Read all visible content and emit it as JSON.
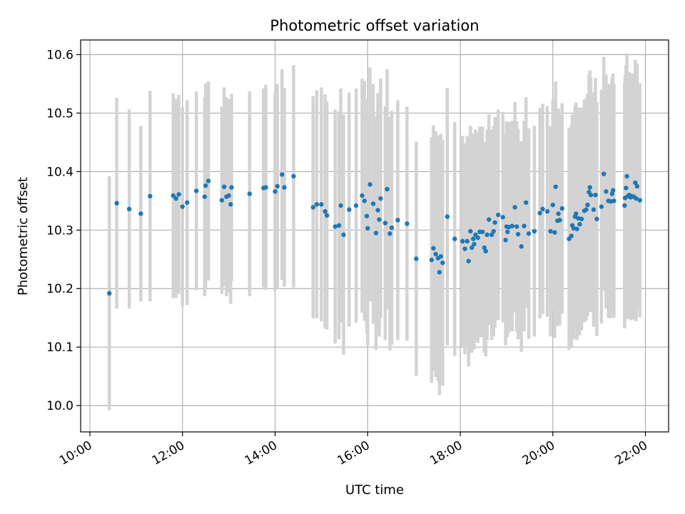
{
  "chart_data": {
    "type": "scatter",
    "title": "Photometric offset variation",
    "xlabel": "UTC time",
    "ylabel": "Photometric offset",
    "x_unit": "hours (UTC)",
    "xlim": [
      9.8,
      22.5
    ],
    "ylim": [
      9.955,
      10.625
    ],
    "xticks": [
      10,
      12,
      14,
      16,
      18,
      20,
      22
    ],
    "xtick_labels": [
      "10:00",
      "12:00",
      "14:00",
      "16:00",
      "18:00",
      "20:00",
      "22:00"
    ],
    "yticks": [
      10.0,
      10.1,
      10.2,
      10.3,
      10.4,
      10.5,
      10.6
    ],
    "ytick_labels": [
      "10.0",
      "10.1",
      "10.2",
      "10.3",
      "10.4",
      "10.5",
      "10.6"
    ],
    "grid": true,
    "marker_color": "#1f77b4",
    "errorbar_color": "#d3d3d3",
    "points": [
      [
        10.42,
        10.192,
        0.2
      ],
      [
        10.58,
        10.346,
        0.18
      ],
      [
        10.85,
        10.336,
        0.17
      ],
      [
        11.1,
        10.328,
        0.15
      ],
      [
        11.3,
        10.358,
        0.18
      ],
      [
        11.8,
        10.359,
        0.175
      ],
      [
        11.86,
        10.354,
        0.17
      ],
      [
        11.92,
        10.361,
        0.17
      ],
      [
        12.0,
        10.34,
        0.17
      ],
      [
        12.1,
        10.347,
        0.175
      ],
      [
        12.3,
        10.367,
        0.17
      ],
      [
        12.48,
        10.357,
        0.17
      ],
      [
        12.5,
        10.376,
        0.175
      ],
      [
        12.56,
        10.384,
        0.17
      ],
      [
        12.85,
        10.351,
        0.16
      ],
      [
        12.9,
        10.374,
        0.17
      ],
      [
        12.95,
        10.357,
        0.17
      ],
      [
        13.0,
        10.359,
        0.165
      ],
      [
        13.04,
        10.344,
        0.17
      ],
      [
        13.06,
        10.373,
        0.16
      ],
      [
        13.45,
        10.362,
        0.175
      ],
      [
        13.75,
        10.372,
        0.17
      ],
      [
        13.8,
        10.373,
        0.175
      ],
      [
        14.0,
        10.366,
        0.17
      ],
      [
        14.05,
        10.375,
        0.175
      ],
      [
        14.15,
        10.395,
        0.18
      ],
      [
        14.2,
        10.373,
        0.17
      ],
      [
        14.4,
        10.392,
        0.19
      ],
      [
        14.82,
        10.339,
        0.19
      ],
      [
        14.9,
        10.344,
        0.195
      ],
      [
        15.0,
        10.344,
        0.2
      ],
      [
        15.08,
        10.332,
        0.2
      ],
      [
        15.12,
        10.325,
        0.195
      ],
      [
        15.3,
        10.306,
        0.2
      ],
      [
        15.38,
        10.308,
        0.195
      ],
      [
        15.42,
        10.342,
        0.2
      ],
      [
        15.48,
        10.292,
        0.205
      ],
      [
        15.6,
        10.335,
        0.2
      ],
      [
        15.75,
        10.342,
        0.2
      ],
      [
        15.88,
        10.359,
        0.2
      ],
      [
        15.93,
        10.35,
        0.205
      ],
      [
        15.98,
        10.324,
        0.2
      ],
      [
        16.0,
        10.303,
        0.2
      ],
      [
        16.05,
        10.378,
        0.2
      ],
      [
        16.12,
        10.345,
        0.205
      ],
      [
        16.18,
        10.295,
        0.2
      ],
      [
        16.22,
        10.334,
        0.2
      ],
      [
        16.25,
        10.318,
        0.2
      ],
      [
        16.28,
        10.354,
        0.205
      ],
      [
        16.38,
        10.312,
        0.2
      ],
      [
        16.42,
        10.37,
        0.205
      ],
      [
        16.48,
        10.294,
        0.2
      ],
      [
        16.52,
        10.304,
        0.2
      ],
      [
        16.65,
        10.317,
        0.205
      ],
      [
        16.85,
        10.311,
        0.2
      ],
      [
        17.05,
        10.251,
        0.2
      ],
      [
        17.38,
        10.249,
        0.21
      ],
      [
        17.42,
        10.269,
        0.21
      ],
      [
        17.47,
        10.259,
        0.21
      ],
      [
        17.52,
        10.252,
        0.21
      ],
      [
        17.55,
        10.228,
        0.21
      ],
      [
        17.58,
        10.255,
        0.21
      ],
      [
        17.62,
        10.244,
        0.21
      ],
      [
        17.72,
        10.323,
        0.22
      ],
      [
        17.88,
        10.285,
        0.2
      ],
      [
        18.05,
        10.281,
        0.18
      ],
      [
        18.1,
        10.268,
        0.18
      ],
      [
        18.15,
        10.281,
        0.18
      ],
      [
        18.18,
        10.247,
        0.18
      ],
      [
        18.22,
        10.298,
        0.18
      ],
      [
        18.25,
        10.27,
        0.18
      ],
      [
        18.28,
        10.285,
        0.18
      ],
      [
        18.3,
        10.276,
        0.18
      ],
      [
        18.33,
        10.292,
        0.18
      ],
      [
        18.38,
        10.287,
        0.18
      ],
      [
        18.42,
        10.297,
        0.18
      ],
      [
        18.48,
        10.297,
        0.18
      ],
      [
        18.52,
        10.27,
        0.18
      ],
      [
        18.55,
        10.264,
        0.18
      ],
      [
        18.58,
        10.292,
        0.18
      ],
      [
        18.62,
        10.318,
        0.18
      ],
      [
        18.68,
        10.292,
        0.18
      ],
      [
        18.72,
        10.298,
        0.18
      ],
      [
        18.75,
        10.313,
        0.18
      ],
      [
        18.82,
        10.326,
        0.18
      ],
      [
        18.92,
        10.322,
        0.18
      ],
      [
        18.98,
        10.283,
        0.18
      ],
      [
        19.0,
        10.306,
        0.18
      ],
      [
        19.02,
        10.297,
        0.18
      ],
      [
        19.05,
        10.305,
        0.18
      ],
      [
        19.12,
        10.307,
        0.18
      ],
      [
        19.18,
        10.339,
        0.18
      ],
      [
        19.22,
        10.306,
        0.18
      ],
      [
        19.25,
        10.293,
        0.18
      ],
      [
        19.32,
        10.272,
        0.18
      ],
      [
        19.38,
        10.307,
        0.18
      ],
      [
        19.42,
        10.347,
        0.18
      ],
      [
        19.48,
        10.294,
        0.18
      ],
      [
        19.6,
        10.298,
        0.18
      ],
      [
        19.72,
        10.329,
        0.18
      ],
      [
        19.78,
        10.336,
        0.18
      ],
      [
        19.88,
        10.332,
        0.18
      ],
      [
        19.95,
        10.298,
        0.18
      ],
      [
        20.0,
        10.343,
        0.18
      ],
      [
        20.04,
        10.296,
        0.18
      ],
      [
        20.06,
        10.374,
        0.18
      ],
      [
        20.1,
        10.316,
        0.18
      ],
      [
        20.12,
        10.328,
        0.18
      ],
      [
        20.15,
        10.317,
        0.18
      ],
      [
        20.2,
        10.337,
        0.18
      ],
      [
        20.35,
        10.285,
        0.19
      ],
      [
        20.4,
        10.29,
        0.19
      ],
      [
        20.42,
        10.308,
        0.19
      ],
      [
        20.45,
        10.303,
        0.19
      ],
      [
        20.48,
        10.323,
        0.19
      ],
      [
        20.5,
        10.328,
        0.19
      ],
      [
        20.52,
        10.302,
        0.19
      ],
      [
        20.55,
        10.32,
        0.19
      ],
      [
        20.58,
        10.31,
        0.19
      ],
      [
        20.62,
        10.319,
        0.19
      ],
      [
        20.68,
        10.333,
        0.19
      ],
      [
        20.72,
        10.335,
        0.19
      ],
      [
        20.75,
        10.343,
        0.19
      ],
      [
        20.78,
        10.365,
        0.2
      ],
      [
        20.8,
        10.373,
        0.2
      ],
      [
        20.82,
        10.36,
        0.2
      ],
      [
        20.88,
        10.335,
        0.2
      ],
      [
        20.92,
        10.36,
        0.2
      ],
      [
        20.95,
        10.319,
        0.2
      ],
      [
        21.05,
        10.34,
        0.2
      ],
      [
        21.1,
        10.396,
        0.2
      ],
      [
        21.15,
        10.366,
        0.2
      ],
      [
        21.2,
        10.35,
        0.2
      ],
      [
        21.25,
        10.349,
        0.2
      ],
      [
        21.28,
        10.362,
        0.2
      ],
      [
        21.3,
        10.368,
        0.2
      ],
      [
        21.32,
        10.35,
        0.2
      ],
      [
        21.55,
        10.342,
        0.21
      ],
      [
        21.56,
        10.355,
        0.21
      ],
      [
        21.58,
        10.372,
        0.21
      ],
      [
        21.6,
        10.392,
        0.21
      ],
      [
        21.62,
        10.358,
        0.21
      ],
      [
        21.65,
        10.36,
        0.21
      ],
      [
        21.68,
        10.356,
        0.21
      ],
      [
        21.7,
        10.358,
        0.21
      ],
      [
        21.75,
        10.357,
        0.21
      ],
      [
        21.78,
        10.381,
        0.21
      ],
      [
        21.8,
        10.354,
        0.21
      ],
      [
        21.82,
        10.375,
        0.21
      ],
      [
        21.88,
        10.351,
        0.2
      ]
    ]
  }
}
